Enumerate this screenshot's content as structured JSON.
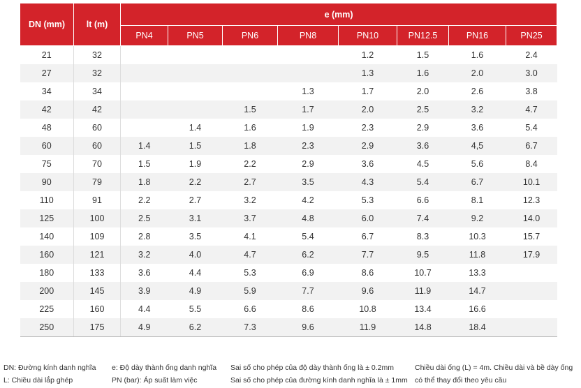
{
  "table": {
    "headers": {
      "dn": "DN (mm)",
      "lt": "lt (m)",
      "group": "e (mm)",
      "pn": [
        "PN4",
        "PN5",
        "PN6",
        "PN8",
        "PN10",
        "PN12.5",
        "PN16",
        "PN25"
      ]
    },
    "rows": [
      [
        "21",
        "32",
        null,
        null,
        null,
        null,
        "1.2",
        "1.5",
        "1.6",
        "2.4"
      ],
      [
        "27",
        "32",
        null,
        null,
        null,
        null,
        "1.3",
        "1.6",
        "2.0",
        "3.0"
      ],
      [
        "34",
        "34",
        null,
        null,
        null,
        "1.3",
        "1.7",
        "2.0",
        "2.6",
        "3.8"
      ],
      [
        "42",
        "42",
        null,
        null,
        "1.5",
        "1.7",
        "2.0",
        "2.5",
        "3.2",
        "4.7"
      ],
      [
        "48",
        "60",
        null,
        "1.4",
        "1.6",
        "1.9",
        "2.3",
        "2.9",
        "3.6",
        "5.4"
      ],
      [
        "60",
        "60",
        "1.4",
        "1.5",
        "1.8",
        "2.3",
        "2.9",
        "3.6",
        "4,5",
        "6.7"
      ],
      [
        "75",
        "70",
        "1.5",
        "1.9",
        "2.2",
        "2.9",
        "3.6",
        "4.5",
        "5.6",
        "8.4"
      ],
      [
        "90",
        "79",
        "1.8",
        "2.2",
        "2.7",
        "3.5",
        "4.3",
        "5.4",
        "6.7",
        "10.1"
      ],
      [
        "110",
        "91",
        "2.2",
        "2.7",
        "3.2",
        "4.2",
        "5.3",
        "6.6",
        "8.1",
        "12.3"
      ],
      [
        "125",
        "100",
        "2.5",
        "3.1",
        "3.7",
        "4.8",
        "6.0",
        "7.4",
        "9.2",
        "14.0"
      ],
      [
        "140",
        "109",
        "2.8",
        "3.5",
        "4.1",
        "5.4",
        "6.7",
        "8.3",
        "10.3",
        "15.7"
      ],
      [
        "160",
        "121",
        "3.2",
        "4.0",
        "4.7",
        "6.2",
        "7.7",
        "9.5",
        "11.8",
        "17.9"
      ],
      [
        "180",
        "133",
        "3.6",
        "4.4",
        "5.3",
        "6.9",
        "8.6",
        "10.7",
        "13.3",
        null
      ],
      [
        "200",
        "145",
        "3.9",
        "4.9",
        "5.9",
        "7.7",
        "9.6",
        "11.9",
        "14.7",
        null
      ],
      [
        "225",
        "160",
        "4.4",
        "5.5",
        "6.6",
        "8.6",
        "10.8",
        "13.4",
        "16.6",
        null
      ],
      [
        "250",
        "175",
        "4.9",
        "6.2",
        "7.3",
        "9.6",
        "11.9",
        "14.8",
        "18.4",
        null
      ]
    ]
  },
  "notes": [
    [
      "DN: Đường kính danh nghĩa",
      "L: Chiều dài lắp ghép"
    ],
    [
      "e: Độ dày thành ống danh nghĩa",
      "PN (bar): Áp suất làm việc"
    ],
    [
      "Sai số cho phép của độ dày thành ống là ± 0.2mm",
      "Sai số cho phép của đường kính danh nghĩa là ± 1mm"
    ],
    [
      "Chiều dài ống (L) = 4m. Chiều dài và bề dày ống",
      "có thể thay đổi theo yêu cầu"
    ]
  ]
}
